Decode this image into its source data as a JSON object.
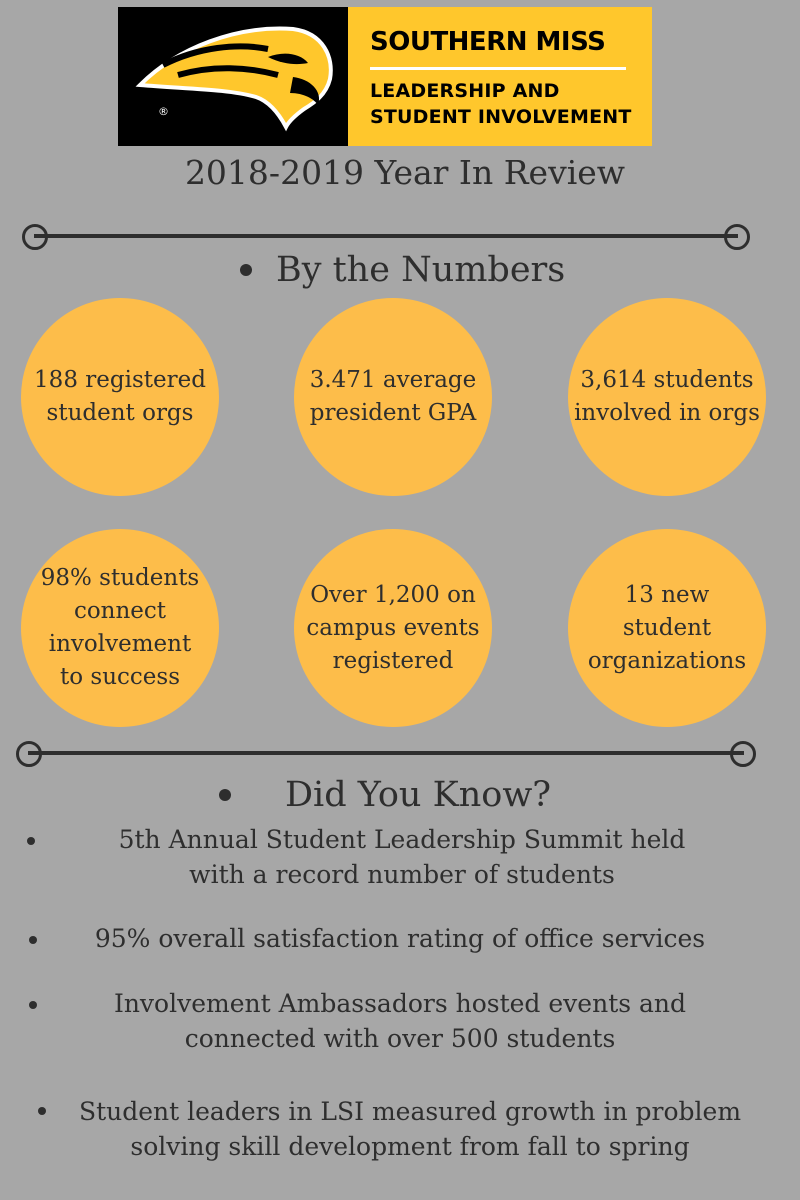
{
  "logo": {
    "brand": "SOUTHERN MISS",
    "department_line1": "LEADERSHIP AND",
    "department_line2": "STUDENT INVOLVEMENT",
    "registered_mark": "®"
  },
  "title": "2018-2019 Year In Review",
  "numbers_section": {
    "heading": "By the Numbers",
    "stats": [
      "188 registered student orgs",
      "3.471 average president GPA",
      "3,614 students involved in orgs",
      "98% students connect involvement to success",
      "Over 1,200 on campus events registered",
      "13 new student organizations"
    ]
  },
  "facts_section": {
    "heading": "Did You Know?",
    "facts": [
      "5th Annual Student Leadership Summit held with a record number of students",
      "95% overall satisfaction rating of office services",
      "Involvement Ambassadors hosted events and connected with over 500 students",
      "Student leaders in LSI measured growth in problem solving skill development from fall to spring"
    ]
  },
  "colors": {
    "background": "#a7a7a7",
    "circle_fill": "#fdbd4a",
    "brand_gold": "#ffc72c",
    "brand_black": "#000000",
    "text": "#2e2e2e"
  }
}
